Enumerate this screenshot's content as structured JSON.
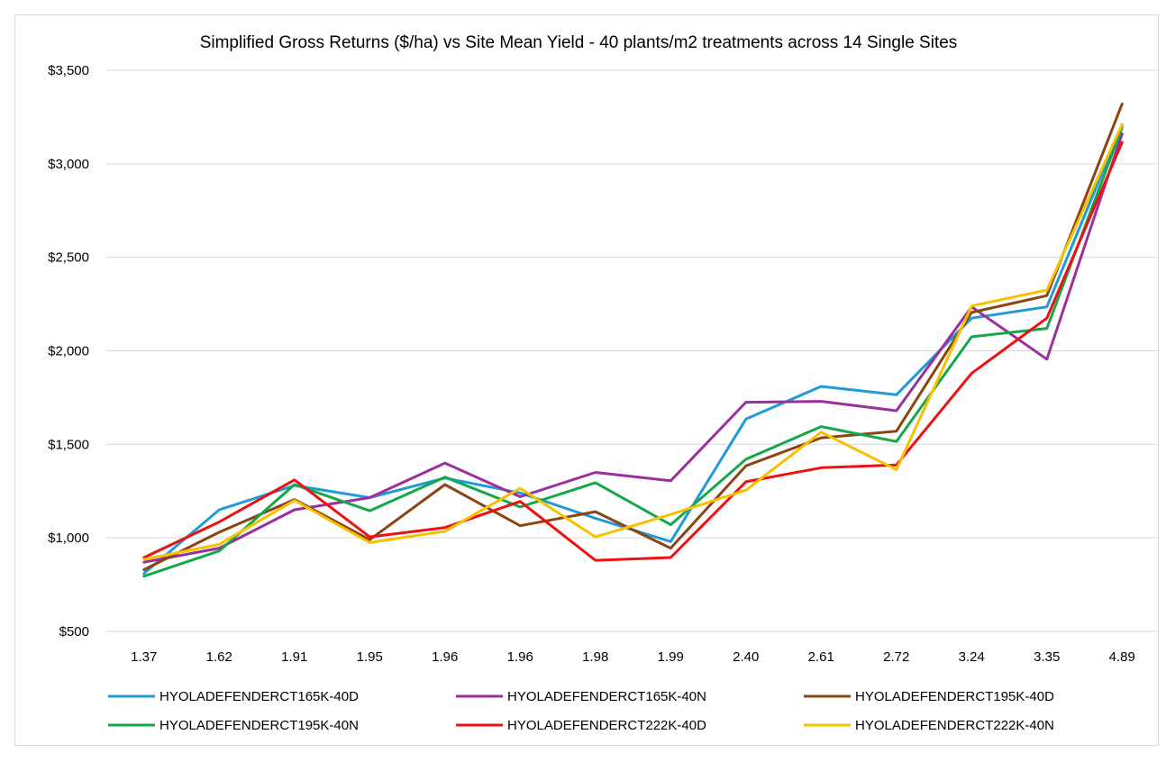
{
  "chart_data": {
    "type": "line",
    "title": "Simplified Gross Returns ($/ha) vs Site Mean Yield - 40 plants/m2 treatments across 14 Single Sites",
    "xlabel": "",
    "ylabel": "",
    "categories": [
      "1.37",
      "1.62",
      "1.91",
      "1.95",
      "1.96",
      "1.96",
      "1.98",
      "1.99",
      "2.40",
      "2.61",
      "2.72",
      "3.24",
      "3.35",
      "4.89"
    ],
    "ylim": [
      500,
      3500
    ],
    "yticks": [
      500,
      1000,
      1500,
      2000,
      2500,
      3000,
      3500
    ],
    "ytick_labels": [
      "$500",
      "$1,000",
      "$1,500",
      "$2,000",
      "$2,500",
      "$3,000",
      "$3,500"
    ],
    "grid": true,
    "legend_position": "bottom",
    "series": [
      {
        "name": "HYOLADEFENDERCT165K-40D",
        "color": "#1f9bd7",
        "values": [
          810,
          1150,
          1280,
          1215,
          1320,
          1240,
          1105,
          980,
          1635,
          1810,
          1765,
          2175,
          2235,
          3210
        ]
      },
      {
        "name": "HYOLADEFENDERCT165K-40N",
        "color": "#9b2f9b",
        "values": [
          870,
          945,
          1150,
          1215,
          1400,
          1220,
          1350,
          1305,
          1725,
          1730,
          1680,
          2235,
          1955,
          3160
        ]
      },
      {
        "name": "HYOLADEFENDERCT195K-40D",
        "color": "#8b4513",
        "values": [
          830,
          1030,
          1205,
          990,
          1285,
          1065,
          1140,
          945,
          1385,
          1535,
          1570,
          2205,
          2295,
          3320
        ]
      },
      {
        "name": "HYOLADEFENDERCT195K-40N",
        "color": "#14a84b",
        "values": [
          795,
          930,
          1285,
          1145,
          1325,
          1165,
          1295,
          1070,
          1420,
          1595,
          1515,
          2075,
          2120,
          3195
        ]
      },
      {
        "name": "HYOLADEFENDERCT222K-40D",
        "color": "#ee1111",
        "values": [
          895,
          1085,
          1310,
          1005,
          1055,
          1195,
          880,
          895,
          1300,
          1375,
          1390,
          1880,
          2175,
          3115
        ]
      },
      {
        "name": "HYOLADEFENDERCT222K-40N",
        "color": "#f9c000",
        "values": [
          885,
          965,
          1200,
          975,
          1035,
          1265,
          1005,
          1125,
          1255,
          1565,
          1365,
          2240,
          2325,
          3210
        ]
      }
    ]
  }
}
